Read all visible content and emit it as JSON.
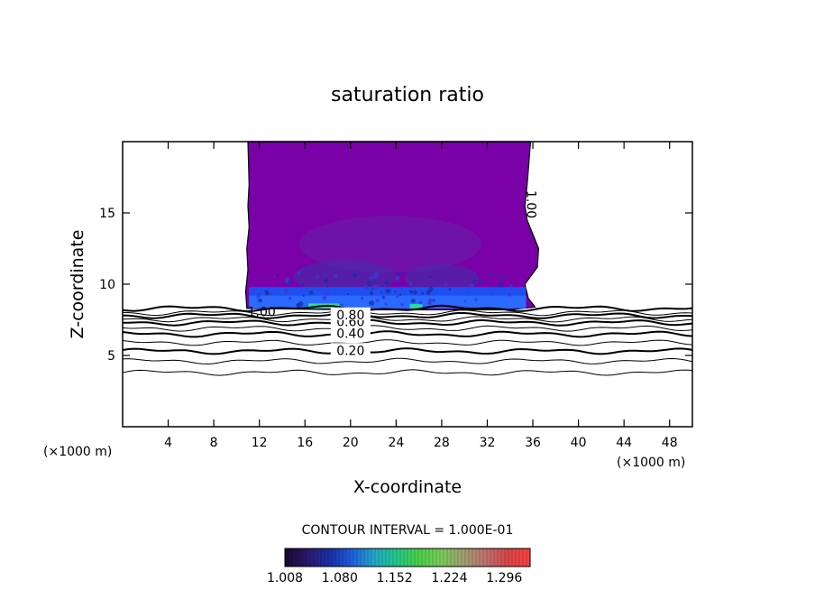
{
  "chart_data": {
    "type": "heatmap",
    "title": "saturation ratio",
    "xlabel": "X-coordinate",
    "ylabel": "Z-coordinate",
    "x_unit": "(×1000 m)",
    "y_unit": "(×1000 m)",
    "xlim": [
      0,
      50
    ],
    "ylim": [
      0,
      20
    ],
    "xticks": [
      4,
      8,
      12,
      16,
      20,
      24,
      28,
      32,
      36,
      40,
      44,
      48
    ],
    "yticks": [
      5,
      10,
      15
    ],
    "contour_interval_text": "CONTOUR INTERVAL = 1.000E-01",
    "contour_lines": [
      {
        "label": "0.20",
        "z": 5.3
      },
      {
        "label": "0.40",
        "z": 6.5
      },
      {
        "label": "0.60",
        "z": 7.3
      },
      {
        "label": "0.80",
        "z": 7.8
      },
      {
        "label": "1.00",
        "z": 8.3
      }
    ],
    "extra_contour_levels": [
      3.8,
      4.6,
      5.9,
      6.9,
      7.55,
      8.0
    ],
    "colorbar": {
      "min": 1.008,
      "max": 1.33,
      "tick_labels": [
        "1.008",
        "1.080",
        "1.152",
        "1.224",
        "1.296"
      ],
      "colors": [
        "#1a0630",
        "#2a1a6a",
        "#1a2fa8",
        "#1f5fe0",
        "#22a8c8",
        "#22c88a",
        "#4ad04a",
        "#7acc5a",
        "#a0a070",
        "#c07070",
        "#d84848",
        "#ff4040"
      ]
    },
    "cloud_region": {
      "fill_color": "#7a00a8",
      "inner_color": "#6a1aa8",
      "band_color": "#1f4ff0",
      "highlight_color": "#22e0a0",
      "outline_label": "1.00"
    }
  }
}
